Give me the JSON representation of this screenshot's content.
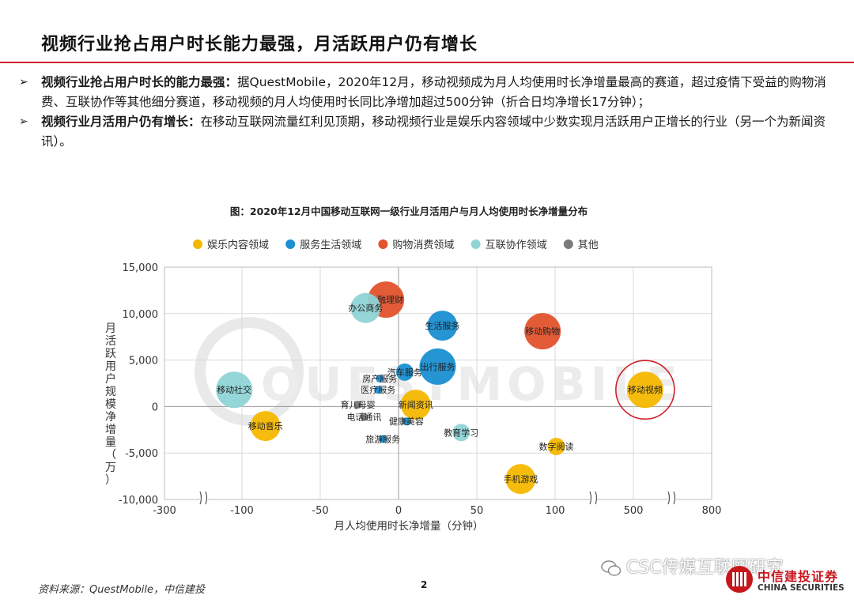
{
  "header": {
    "title": "视频行业抢占用户时长能力最强，月活跃用户仍有增长"
  },
  "bullets": [
    {
      "marker": "➢",
      "bold": "视频行业抢占用户时长的能力最强：",
      "text": "据QuestMobile，2020年12月，移动视频成为月人均使用时长净增量最高的赛道，超过疫情下受益的购物消费、互联协作等其他细分赛道，移动视频的月人均使用时长同比净增加超过500分钟（折合日均净增长17分钟）；"
    },
    {
      "marker": "➢",
      "bold": "视频行业月活用户仍有增长：",
      "text": "在移动互联网流量红利见顶期，移动视频行业是娱乐内容领域中少数实现月活跃用户正增长的行业（另一个为新闻资讯）。"
    }
  ],
  "chart_data": {
    "type": "scatter",
    "title": "图：2020年12月中国移动互联网一级行业月活用户与月人均使用时长净增量分布",
    "xlabel": "月人均使用时长净增量（分钟）",
    "ylabel": "月活跃用户规模净增量（万）",
    "x_ticks": [
      "-300",
      "-100",
      "-50",
      "0",
      "50",
      "100",
      "500",
      "800"
    ],
    "y_ticks": [
      "15,000",
      "10,000",
      "5,000",
      "0",
      "-5,000",
      "-10,000"
    ],
    "ylim": [
      -10000,
      15000
    ],
    "x_axis_note": "x axis is broken (≈) between -300 and -100, and between 100 and 500, and between 500 and 800",
    "legend_position": "top",
    "categories": [
      {
        "name": "娱乐内容领域",
        "color": "#f5b800"
      },
      {
        "name": "服务生活领域",
        "color": "#1a8fd1"
      },
      {
        "name": "购物消费领域",
        "color": "#e3532c"
      },
      {
        "name": "互联协作领域",
        "color": "#8fd4d6"
      },
      {
        "name": "其他",
        "color": "#7a7a7a"
      }
    ],
    "points": [
      {
        "label": "金融理财",
        "x": -8,
        "y": 11500,
        "category": "购物消费领域",
        "size": "large"
      },
      {
        "label": "办公商务",
        "x": -21,
        "y": 10600,
        "category": "互联协作领域",
        "size": "medium"
      },
      {
        "label": "生活服务",
        "x": 28,
        "y": 8700,
        "category": "服务生活领域",
        "size": "medium"
      },
      {
        "label": "移动购物",
        "x": 92,
        "y": 8100,
        "category": "购物消费领域",
        "size": "large"
      },
      {
        "label": "汽车服务",
        "x": 4,
        "y": 3700,
        "category": "服务生活领域",
        "size": "small"
      },
      {
        "label": "出行服务",
        "x": 25,
        "y": 4300,
        "category": "服务生活领域",
        "size": "large"
      },
      {
        "label": "房产服务",
        "x": -12,
        "y": 3000,
        "category": "服务生活领域",
        "size": "tiny"
      },
      {
        "label": "医疗服务",
        "x": -13,
        "y": 1800,
        "category": "服务生活领域",
        "size": "tiny"
      },
      {
        "label": "移动社交",
        "x": -120,
        "y": 1800,
        "category": "互联协作领域",
        "size": "large"
      },
      {
        "label": "移动视频",
        "x": 545,
        "y": 1800,
        "category": "娱乐内容领域",
        "size": "large",
        "highlighted": true
      },
      {
        "label": "育儿母婴",
        "x": -26,
        "y": 200,
        "category": "其他",
        "size": "tiny"
      },
      {
        "label": "新闻资讯",
        "x": 11,
        "y": 200,
        "category": "娱乐内容领域",
        "size": "medium"
      },
      {
        "label": "电话通讯",
        "x": -22,
        "y": -1100,
        "category": "其他",
        "size": "tiny"
      },
      {
        "label": "健康美容",
        "x": 5,
        "y": -1600,
        "category": "服务生活领域",
        "size": "tiny"
      },
      {
        "label": "移动音乐",
        "x": -85,
        "y": -2100,
        "category": "娱乐内容领域",
        "size": "medium"
      },
      {
        "label": "教育学习",
        "x": 40,
        "y": -2800,
        "category": "互联协作领域",
        "size": "small"
      },
      {
        "label": "旅游服务",
        "x": -10,
        "y": -3500,
        "category": "服务生活领域",
        "size": "tiny"
      },
      {
        "label": "数字阅读",
        "x": 106,
        "y": -4300,
        "category": "娱乐内容领域",
        "size": "small"
      },
      {
        "label": "手机游戏",
        "x": 78,
        "y": -7800,
        "category": "娱乐内容领域",
        "size": "medium"
      }
    ],
    "watermark": "QUESTMOBILE"
  },
  "footer": {
    "source": "资料来源：QuestMobile，中信建投",
    "page_number": "2",
    "wechat_watermark": "CSC传媒互联网研究",
    "logo_cn": "中信建投证券",
    "logo_en": "CHINA SECURITIES"
  }
}
